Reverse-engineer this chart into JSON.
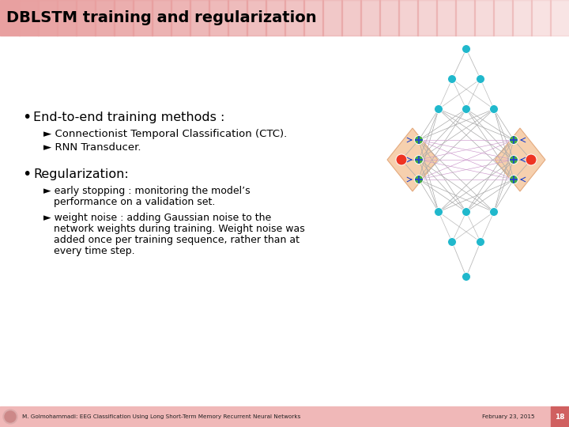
{
  "title": "DBLSTM training and regularization",
  "title_color": "#000000",
  "slide_bg_color": "#ffffff",
  "header_bar_left_color": "#e8a0a0",
  "header_bar_right_color": "#fef5f5",
  "footer_bg_color": "#f0b8b8",
  "footer_text": "M. Golmohammadi: EEG Classification Using Long Short-Term Memory Recurrent Neural Networks",
  "footer_date": "February 23, 2015",
  "footer_page": "18",
  "footer_page_bg": "#d06060",
  "node_cyan": "#20b8cc",
  "node_green": "#44aa44",
  "node_red": "#ee3322",
  "node_blue": "#2244cc",
  "edge_color": "#aaaaaa",
  "lstm_bg_color": "#f5c8a0",
  "lstm_edge_color": "#e0a070",
  "cross_edge_color": "#cc88cc",
  "bullet_color": "#000000",
  "text_color": "#000000"
}
